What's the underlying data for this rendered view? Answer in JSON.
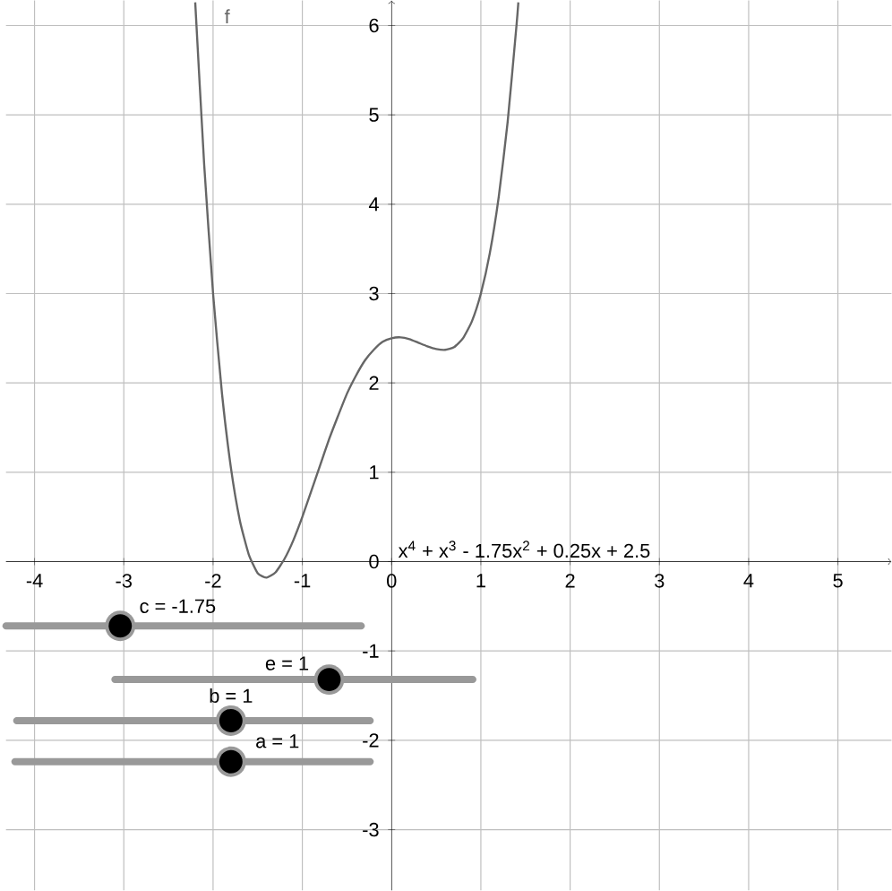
{
  "chart_data": {
    "type": "line",
    "x": [
      -2.2,
      -2.1,
      -2.0,
      -1.9,
      -1.8,
      -1.7,
      -1.6,
      -1.5,
      -1.4,
      -1.3,
      -1.2,
      -1.1,
      -1.0,
      -0.9,
      -0.8,
      -0.7,
      -0.6,
      -0.5,
      -0.4,
      -0.3,
      -0.2,
      -0.1,
      0.0,
      0.1,
      0.2,
      0.3,
      0.4,
      0.5,
      0.6,
      0.7,
      0.8,
      0.9,
      1.0,
      1.1,
      1.2,
      1.3,
      1.4,
      1.42
    ],
    "series": [
      {
        "name": "f",
        "color": "#666666",
        "values": [
          6.26,
          4.45,
          3.0,
          1.88,
          1.05,
          0.46,
          0.08,
          -0.13,
          -0.18,
          -0.12,
          0.03,
          0.24,
          0.5,
          0.79,
          1.08,
          1.37,
          1.63,
          1.88,
          2.08,
          2.25,
          2.37,
          2.46,
          2.5,
          2.51,
          2.49,
          2.45,
          2.41,
          2.38,
          2.37,
          2.4,
          2.5,
          2.69,
          3.0,
          3.45,
          4.08,
          4.92,
          6.01,
          6.26
        ]
      }
    ],
    "xlim": [
      -4.32,
      5.6
    ],
    "ylim": [
      -3.68,
      6.28
    ],
    "xticks": [
      -4,
      -3,
      -2,
      -1,
      0,
      1,
      2,
      3,
      4,
      5
    ],
    "yticks": [
      -3,
      -2,
      -1,
      0,
      1,
      2,
      3,
      4,
      5,
      6
    ],
    "grid": true,
    "annotations": [
      "x$^{4}$ + x$^{3}$ - 1.75x$^{2}$ + 0.25x + 2.5",
      "c = -1.75",
      "e = 1",
      "b = 1",
      "a = 1"
    ]
  }
}
